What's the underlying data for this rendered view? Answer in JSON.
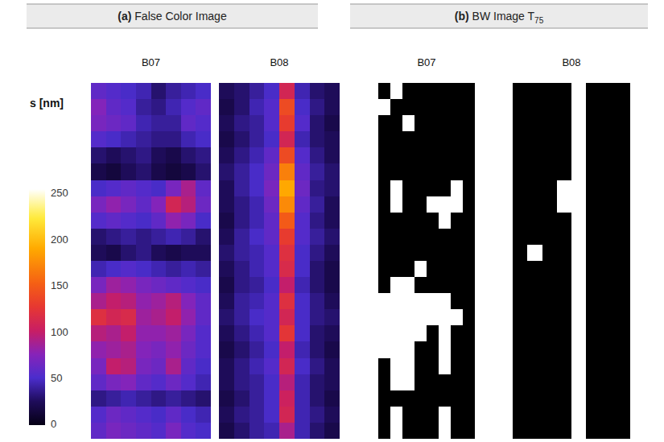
{
  "chart_data": [
    {
      "type": "heatmap",
      "letter": "(a)",
      "title": "False Color Image",
      "panels": [
        {
          "label": "B07",
          "cells": [
            [
              60,
              55,
              50,
              45,
              30,
              40,
              45,
              50
            ],
            [
              75,
              60,
              55,
              40,
              35,
              45,
              55,
              60
            ],
            [
              70,
              65,
              60,
              45,
              40,
              40,
              60,
              55
            ],
            [
              55,
              50,
              45,
              40,
              35,
              35,
              45,
              50
            ],
            [
              30,
              25,
              30,
              35,
              25,
              20,
              30,
              35
            ],
            [
              20,
              15,
              25,
              30,
              20,
              15,
              20,
              30
            ],
            [
              50,
              55,
              60,
              55,
              50,
              70,
              90,
              60
            ],
            [
              70,
              80,
              70,
              60,
              75,
              110,
              95,
              65
            ],
            [
              55,
              60,
              55,
              50,
              60,
              80,
              70,
              50
            ],
            [
              30,
              35,
              40,
              35,
              40,
              45,
              40,
              30
            ],
            [
              25,
              20,
              30,
              35,
              25,
              20,
              25,
              25
            ],
            [
              45,
              50,
              55,
              50,
              45,
              40,
              45,
              40
            ],
            [
              70,
              85,
              80,
              70,
              65,
              60,
              55,
              50
            ],
            [
              90,
              100,
              95,
              80,
              85,
              95,
              75,
              60
            ],
            [
              120,
              110,
              115,
              85,
              90,
              100,
              80,
              60
            ],
            [
              95,
              90,
              100,
              80,
              80,
              85,
              70,
              55
            ],
            [
              80,
              85,
              90,
              75,
              70,
              80,
              65,
              55
            ],
            [
              70,
              100,
              95,
              70,
              65,
              90,
              60,
              50
            ],
            [
              60,
              70,
              75,
              60,
              55,
              65,
              55,
              45
            ],
            [
              35,
              40,
              45,
              40,
              35,
              40,
              35,
              30
            ],
            [
              55,
              65,
              60,
              55,
              50,
              60,
              50,
              45
            ],
            [
              60,
              70,
              65,
              60,
              55,
              70,
              55,
              50
            ]
          ]
        },
        {
          "label": "B08",
          "cells": [
            [
              25,
              30,
              40,
              50,
              110,
              45,
              30,
              25
            ],
            [
              20,
              30,
              45,
              55,
              140,
              50,
              35,
              25
            ],
            [
              25,
              35,
              40,
              55,
              130,
              55,
              30,
              20
            ],
            [
              20,
              30,
              40,
              50,
              110,
              45,
              30,
              25
            ],
            [
              25,
              35,
              45,
              60,
              140,
              55,
              35,
              25
            ],
            [
              30,
              40,
              50,
              65,
              170,
              60,
              40,
              30
            ],
            [
              25,
              40,
              50,
              70,
              190,
              65,
              35,
              30
            ],
            [
              25,
              35,
              45,
              65,
              175,
              60,
              40,
              25
            ],
            [
              20,
              35,
              45,
              60,
              150,
              55,
              35,
              25
            ],
            [
              25,
              40,
              50,
              60,
              130,
              55,
              40,
              30
            ],
            [
              30,
              40,
              45,
              55,
              120,
              50,
              35,
              25
            ],
            [
              25,
              35,
              45,
              55,
              115,
              50,
              30,
              20
            ],
            [
              20,
              35,
              40,
              50,
              100,
              45,
              30,
              20
            ],
            [
              25,
              40,
              45,
              55,
              120,
              50,
              35,
              25
            ],
            [
              30,
              40,
              50,
              55,
              110,
              50,
              35,
              30
            ],
            [
              25,
              35,
              45,
              55,
              125,
              50,
              30,
              25
            ],
            [
              20,
              30,
              40,
              50,
              100,
              45,
              30,
              20
            ],
            [
              25,
              35,
              45,
              55,
              110,
              50,
              35,
              25
            ],
            [
              25,
              35,
              40,
              50,
              95,
              45,
              30,
              25
            ],
            [
              20,
              30,
              40,
              50,
              105,
              45,
              30,
              20
            ],
            [
              25,
              35,
              40,
              50,
              110,
              45,
              35,
              25
            ],
            [
              20,
              30,
              40,
              45,
              90,
              45,
              30,
              20
            ]
          ]
        }
      ],
      "colorbar": {
        "label": "s [nm]",
        "range": [
          0,
          255
        ],
        "ticks": [
          0,
          50,
          100,
          150,
          200,
          250
        ]
      }
    },
    {
      "type": "heatmap",
      "letter": "(b)",
      "title": "BW Image T",
      "title_subscript": "75",
      "panels": [
        {
          "label": "B07",
          "cells": [
            [
              0,
              1,
              0,
              0,
              0,
              0,
              0,
              0
            ],
            [
              1,
              0,
              0,
              0,
              0,
              0,
              0,
              0
            ],
            [
              0,
              0,
              1,
              0,
              0,
              0,
              0,
              0
            ],
            [
              0,
              0,
              0,
              0,
              0,
              0,
              0,
              0
            ],
            [
              0,
              0,
              0,
              0,
              0,
              0,
              0,
              0
            ],
            [
              0,
              0,
              0,
              0,
              0,
              0,
              0,
              0
            ],
            [
              0,
              1,
              0,
              0,
              0,
              0,
              1,
              0
            ],
            [
              0,
              1,
              0,
              0,
              1,
              1,
              1,
              0
            ],
            [
              0,
              0,
              0,
              0,
              0,
              1,
              0,
              0
            ],
            [
              0,
              0,
              0,
              0,
              0,
              0,
              0,
              0
            ],
            [
              0,
              0,
              0,
              0,
              0,
              0,
              0,
              0
            ],
            [
              0,
              0,
              0,
              1,
              0,
              0,
              0,
              0
            ],
            [
              0,
              1,
              1,
              0,
              0,
              0,
              0,
              0
            ],
            [
              1,
              1,
              1,
              1,
              1,
              1,
              0,
              0
            ],
            [
              1,
              1,
              1,
              1,
              1,
              1,
              1,
              0
            ],
            [
              1,
              1,
              1,
              1,
              0,
              1,
              0,
              0
            ],
            [
              1,
              1,
              1,
              0,
              0,
              1,
              0,
              0
            ],
            [
              0,
              1,
              1,
              0,
              0,
              1,
              0,
              0
            ],
            [
              0,
              1,
              1,
              0,
              0,
              0,
              0,
              0
            ],
            [
              0,
              0,
              0,
              0,
              0,
              0,
              0,
              0
            ],
            [
              0,
              1,
              0,
              0,
              0,
              1,
              0,
              0
            ],
            [
              0,
              1,
              0,
              0,
              0,
              1,
              0,
              0
            ]
          ]
        },
        {
          "label": "B08",
          "cells": [
            [
              0,
              0,
              0,
              0,
              1,
              0,
              0,
              0
            ],
            [
              0,
              0,
              0,
              0,
              1,
              0,
              0,
              0
            ],
            [
              0,
              0,
              0,
              0,
              1,
              0,
              0,
              0
            ],
            [
              0,
              0,
              0,
              0,
              1,
              0,
              0,
              0
            ],
            [
              0,
              0,
              0,
              0,
              1,
              0,
              0,
              0
            ],
            [
              0,
              0,
              0,
              0,
              1,
              0,
              0,
              0
            ],
            [
              0,
              0,
              0,
              1,
              1,
              0,
              0,
              0
            ],
            [
              0,
              0,
              0,
              1,
              1,
              0,
              0,
              0
            ],
            [
              0,
              0,
              0,
              0,
              1,
              0,
              0,
              0
            ],
            [
              0,
              0,
              0,
              0,
              1,
              0,
              0,
              0
            ],
            [
              0,
              1,
              0,
              0,
              1,
              0,
              0,
              0
            ],
            [
              0,
              0,
              0,
              0,
              1,
              0,
              0,
              0
            ],
            [
              0,
              0,
              0,
              0,
              1,
              0,
              0,
              0
            ],
            [
              0,
              0,
              0,
              0,
              1,
              0,
              0,
              0
            ],
            [
              0,
              0,
              0,
              0,
              1,
              0,
              0,
              0
            ],
            [
              0,
              0,
              0,
              0,
              1,
              0,
              0,
              0
            ],
            [
              0,
              0,
              0,
              0,
              1,
              0,
              0,
              0
            ],
            [
              0,
              0,
              0,
              0,
              1,
              0,
              0,
              0
            ],
            [
              0,
              0,
              0,
              0,
              1,
              0,
              0,
              0
            ],
            [
              0,
              0,
              0,
              0,
              1,
              0,
              0,
              0
            ],
            [
              0,
              0,
              0,
              0,
              1,
              0,
              0,
              0
            ],
            [
              0,
              0,
              0,
              0,
              1,
              0,
              0,
              0
            ]
          ]
        }
      ]
    }
  ]
}
